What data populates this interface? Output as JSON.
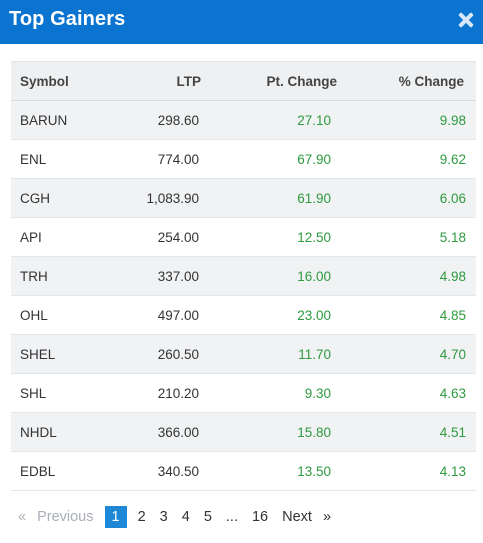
{
  "modal": {
    "title": "Top Gainers",
    "close_icon": "close-icon"
  },
  "colors": {
    "header_bg": "#0b74d0",
    "positive": "#2e9a3f",
    "active_page": "#1e88d6"
  },
  "table": {
    "headers": {
      "symbol": "Symbol",
      "ltp": "LTP",
      "pt_change": "Pt. Change",
      "pct_change": "% Change"
    },
    "rows": [
      {
        "symbol": "BARUN",
        "ltp": "298.60",
        "pt_change": "27.10",
        "pct_change": "9.98"
      },
      {
        "symbol": "ENL",
        "ltp": "774.00",
        "pt_change": "67.90",
        "pct_change": "9.62"
      },
      {
        "symbol": "CGH",
        "ltp": "1,083.90",
        "pt_change": "61.90",
        "pct_change": "6.06"
      },
      {
        "symbol": "API",
        "ltp": "254.00",
        "pt_change": "12.50",
        "pct_change": "5.18"
      },
      {
        "symbol": "TRH",
        "ltp": "337.00",
        "pt_change": "16.00",
        "pct_change": "4.98"
      },
      {
        "symbol": "OHL",
        "ltp": "497.00",
        "pt_change": "23.00",
        "pct_change": "4.85"
      },
      {
        "symbol": "SHEL",
        "ltp": "260.50",
        "pt_change": "11.70",
        "pct_change": "4.70"
      },
      {
        "symbol": "SHL",
        "ltp": "210.20",
        "pt_change": "9.30",
        "pct_change": "4.63"
      },
      {
        "symbol": "NHDL",
        "ltp": "366.00",
        "pt_change": "15.80",
        "pct_change": "4.51"
      },
      {
        "symbol": "EDBL",
        "ltp": "340.50",
        "pt_change": "13.50",
        "pct_change": "4.13"
      }
    ]
  },
  "pagination": {
    "prev_arrow": "«",
    "previous": "Previous",
    "pages": [
      "1",
      "2",
      "3",
      "4",
      "5"
    ],
    "current": "1",
    "ellipsis": "...",
    "last_page": "16",
    "next": "Next",
    "next_arrow": "»"
  }
}
